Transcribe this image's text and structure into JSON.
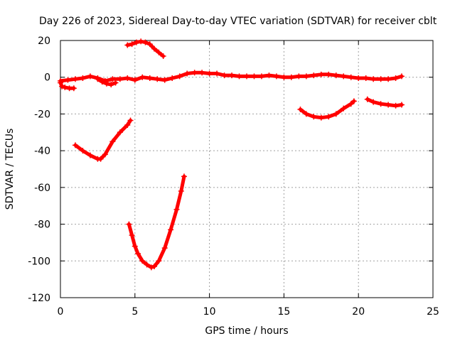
{
  "chart_data": {
    "type": "scatter",
    "title": "Day 226 of 2023, Sidereal Day-to-day VTEC variation (SDTVAR) for receiver cblt",
    "xlabel": "GPS time / hours",
    "ylabel": "SDTVAR / TECUs",
    "xlim": [
      0,
      25
    ],
    "ylim": [
      -120,
      20
    ],
    "xticks": [
      0,
      5,
      10,
      15,
      20,
      25
    ],
    "yticks": [
      -120,
      -100,
      -80,
      -60,
      -40,
      -20,
      0,
      20
    ],
    "grid": true,
    "marker": "plus",
    "color": "#ff0000",
    "segments": [
      {
        "x": [
          0.0,
          0.1,
          0.3,
          0.6,
          0.9
        ],
        "y": [
          -3.0,
          -5.0,
          -5.5,
          -6.0,
          -6.0
        ]
      },
      {
        "x": [
          0.0,
          0.5,
          1.0,
          1.5,
          2.0,
          2.5,
          3.0,
          3.5,
          4.0,
          4.5,
          5.0,
          5.5,
          6.0,
          6.5,
          7.0,
          7.5,
          8.0,
          8.5,
          9.0,
          9.5,
          10.0,
          10.5,
          11.0,
          11.5,
          12.0,
          12.5,
          13.0,
          13.5,
          14.0,
          14.5,
          15.0,
          15.5,
          16.0,
          16.5,
          17.0,
          17.5,
          18.0,
          18.5,
          19.0,
          19.5,
          20.0,
          20.5,
          21.0,
          21.5,
          22.0,
          22.5,
          22.9
        ],
        "y": [
          -2.0,
          -1.5,
          -1.0,
          -0.5,
          0.5,
          -0.5,
          -2.0,
          -1.0,
          -1.0,
          -0.5,
          -1.5,
          0.0,
          -0.5,
          -1.0,
          -1.5,
          -0.5,
          0.5,
          2.0,
          2.5,
          2.5,
          2.0,
          2.0,
          1.0,
          1.0,
          0.5,
          0.5,
          0.5,
          0.5,
          1.0,
          0.5,
          0.0,
          0.0,
          0.5,
          0.5,
          1.0,
          1.5,
          1.5,
          1.0,
          0.5,
          0.0,
          -0.5,
          -0.5,
          -1.0,
          -1.0,
          -1.0,
          -0.5,
          0.5
        ]
      },
      {
        "x": [
          2.5,
          2.8,
          3.1,
          3.4,
          3.7
        ],
        "y": [
          -1.0,
          -2.5,
          -3.5,
          -4.0,
          -3.0
        ]
      },
      {
        "x": [
          4.5,
          4.8,
          5.1,
          5.4,
          5.7,
          6.0,
          6.3,
          6.6,
          6.9
        ],
        "y": [
          17.5,
          18.0,
          19.0,
          19.5,
          19.0,
          18.0,
          15.5,
          13.5,
          11.5
        ]
      },
      {
        "x": [
          1.0,
          1.5,
          2.0,
          2.5,
          2.7,
          3.0,
          3.5,
          4.0,
          4.5,
          4.7
        ],
        "y": [
          -37.0,
          -40.0,
          -42.5,
          -44.5,
          -44.5,
          -42.0,
          -35.0,
          -30.0,
          -26.0,
          -23.5
        ]
      },
      {
        "x": [
          4.6,
          4.8,
          5.0,
          5.2,
          5.5,
          5.8,
          6.1,
          6.3,
          6.6,
          7.0,
          7.4,
          7.8,
          8.1,
          8.3
        ],
        "y": [
          -80.0,
          -86.0,
          -92.0,
          -96.0,
          -100.0,
          -102.0,
          -103.5,
          -103.0,
          -100.0,
          -93.0,
          -83.0,
          -72.0,
          -62.0,
          -54.0
        ]
      },
      {
        "x": [
          16.1,
          16.5,
          17.0,
          17.5,
          18.0,
          18.5,
          19.0,
          19.5,
          19.7
        ],
        "y": [
          -17.5,
          -20.0,
          -21.5,
          -22.0,
          -21.5,
          -20.0,
          -17.0,
          -14.5,
          -13.0
        ]
      },
      {
        "x": [
          20.6,
          21.0,
          21.5,
          22.0,
          22.5,
          22.9
        ],
        "y": [
          -12.0,
          -13.5,
          -14.5,
          -15.0,
          -15.5,
          -15.0
        ]
      }
    ]
  }
}
